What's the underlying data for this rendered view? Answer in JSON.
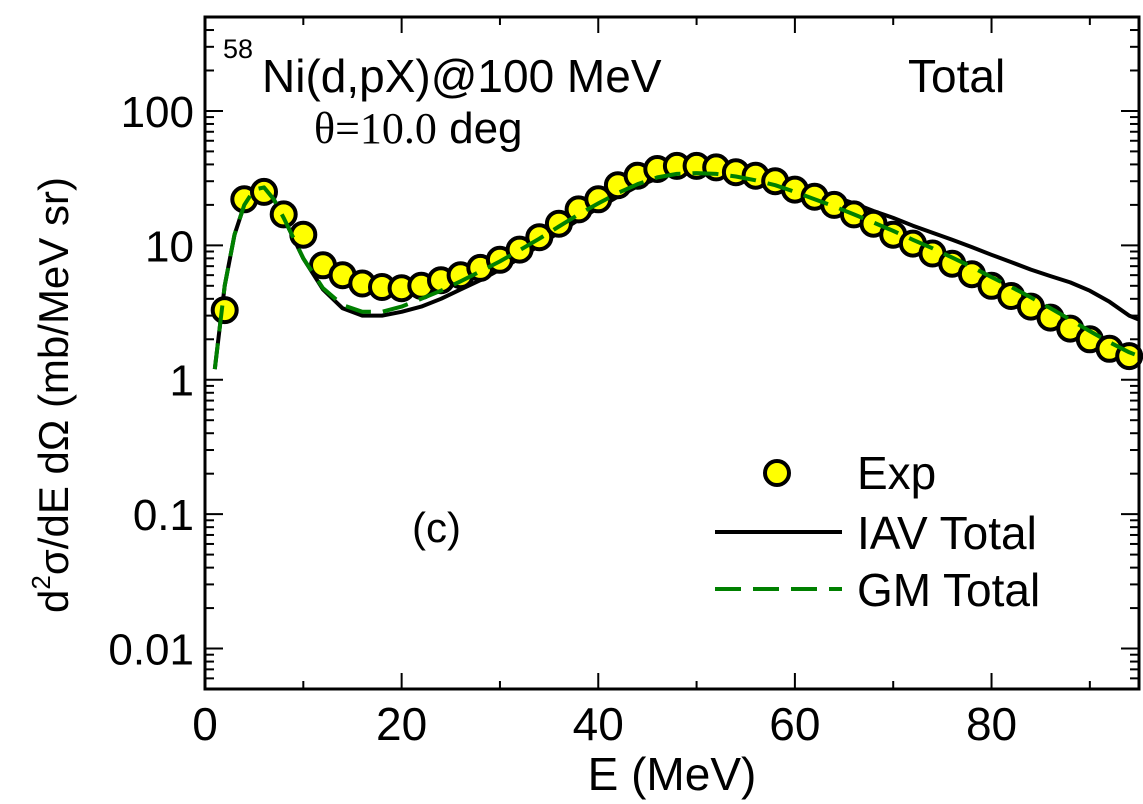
{
  "chart_data": {
    "type": "scatter",
    "title_parts": {
      "sup": "58",
      "main": "Ni(d,pX)@100 MeV"
    },
    "label_total": "Total",
    "angle_parts": {
      "theta": "θ=10.0",
      "unit": " deg"
    },
    "panel_label": "(c)",
    "xlabel": "E (MeV)",
    "ylabel_parts": {
      "d": "d",
      "sup": "2",
      "rest": "σ/dE dΩ (mb/MeV sr)"
    },
    "xlim": [
      0,
      95
    ],
    "ylim": [
      0.005,
      500
    ],
    "yscale": "log",
    "x_ticks": [
      0,
      20,
      40,
      60,
      80
    ],
    "y_ticks": [
      0.01,
      0.1,
      1,
      10,
      100
    ],
    "x_tick_labels": [
      "0",
      "20",
      "40",
      "60",
      "80"
    ],
    "y_tick_labels": [
      "0.01",
      "0.1",
      "1",
      "10",
      "100"
    ],
    "legend_position": "bottom-right",
    "legend": [
      "Exp",
      "IAV Total",
      "GM Total"
    ],
    "colors": {
      "exp_fill": "#ffff00",
      "iav": "#000000",
      "gm": "#008000"
    },
    "series": [
      {
        "name": "Exp",
        "style": "markers",
        "x": [
          2,
          4,
          6,
          8,
          10,
          12,
          14,
          16,
          18,
          20,
          22,
          24,
          26,
          28,
          30,
          32,
          34,
          36,
          38,
          40,
          42,
          44,
          46,
          48,
          50,
          52,
          54,
          56,
          58,
          60,
          62,
          64,
          66,
          68,
          70,
          72,
          74,
          76,
          78,
          80,
          82,
          84,
          86,
          88,
          90,
          92,
          94
        ],
        "y": [
          3.3,
          22,
          25,
          17,
          12,
          7.1,
          6.0,
          5.2,
          4.9,
          4.8,
          5.0,
          5.5,
          6.0,
          6.8,
          7.8,
          9.3,
          11.5,
          14.5,
          18.5,
          22,
          28,
          33,
          37,
          39,
          39,
          38,
          35,
          33,
          30,
          26,
          23,
          20,
          17,
          14.5,
          12,
          10.3,
          8.7,
          7.3,
          6.1,
          5.0,
          4.2,
          3.5,
          2.9,
          2.4,
          2.0,
          1.7,
          1.5
        ]
      },
      {
        "name": "IAV Total",
        "style": "solid",
        "x": [
          1,
          2,
          3,
          4,
          5,
          6,
          7,
          8,
          10,
          12,
          14,
          16,
          18,
          20,
          22,
          24,
          26,
          28,
          30,
          32,
          34,
          36,
          38,
          40,
          42,
          44,
          46,
          48,
          50,
          52,
          54,
          56,
          58,
          60,
          62,
          64,
          66,
          68,
          70,
          72,
          74,
          76,
          78,
          80,
          82,
          84,
          86,
          88,
          90,
          92,
          94,
          95
        ],
        "y": [
          1.2,
          5,
          12,
          20,
          26,
          27,
          22,
          16,
          8,
          4.7,
          3.4,
          3.0,
          3.0,
          3.2,
          3.5,
          4.0,
          4.7,
          5.5,
          6.6,
          8.0,
          10,
          12.5,
          15.5,
          19,
          23,
          27.5,
          31.5,
          34.5,
          36,
          36,
          35,
          33,
          30.5,
          28,
          25.5,
          23,
          20.5,
          18,
          16,
          14,
          12.4,
          11,
          9.7,
          8.5,
          7.5,
          6.6,
          5.9,
          5.3,
          4.6,
          3.8,
          3.0,
          2.8
        ]
      },
      {
        "name": "GM Total",
        "style": "dashed",
        "x": [
          1,
          2,
          3,
          4,
          5,
          6,
          7,
          8,
          10,
          12,
          14,
          16,
          18,
          20,
          22,
          24,
          26,
          28,
          30,
          32,
          34,
          36,
          38,
          40,
          42,
          44,
          46,
          48,
          50,
          52,
          54,
          56,
          58,
          60,
          62,
          64,
          66,
          68,
          70,
          72,
          74,
          76,
          78,
          80,
          82,
          84,
          86,
          88,
          90,
          92,
          94,
          95
        ],
        "y": [
          1.2,
          5,
          12,
          20,
          26,
          27,
          22,
          16,
          8,
          4.8,
          3.6,
          3.2,
          3.2,
          3.5,
          4.0,
          4.6,
          5.4,
          6.4,
          7.6,
          9.2,
          11.2,
          13.8,
          17,
          20.5,
          24.5,
          28.5,
          32,
          34,
          34.5,
          34,
          32.5,
          30.5,
          28,
          25,
          22,
          19.5,
          17,
          14.8,
          12.8,
          11,
          9.5,
          8.1,
          6.9,
          5.8,
          4.9,
          4.1,
          3.4,
          2.8,
          2.3,
          1.9,
          1.6,
          1.5
        ]
      }
    ]
  }
}
